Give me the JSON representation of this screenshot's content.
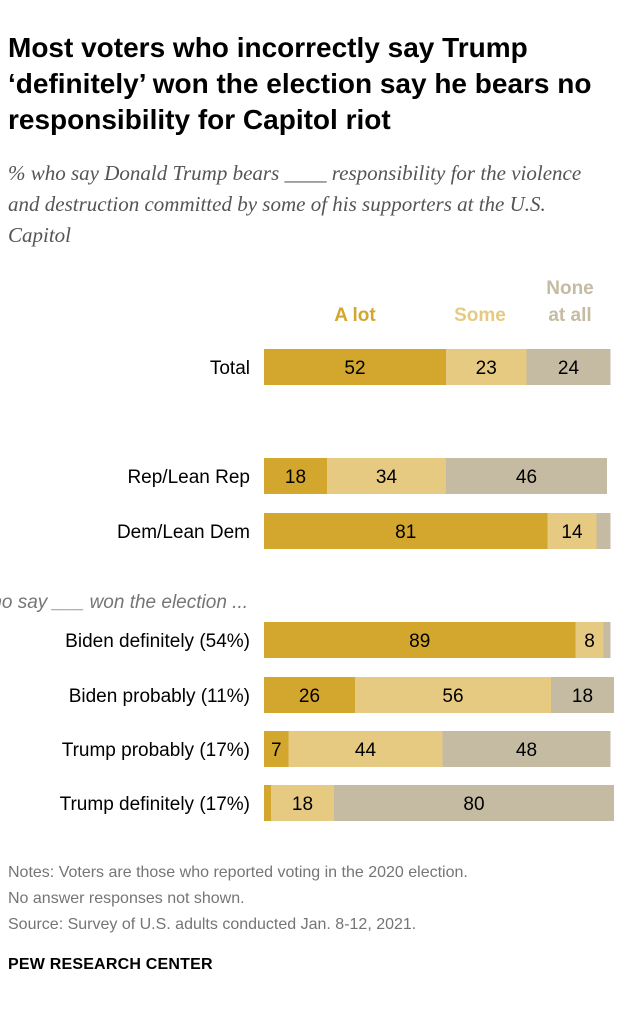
{
  "title": "Most voters who incorrectly say Trump ‘definitely’ won the election say he bears no responsibility for Capitol riot",
  "subtitle": "% who say Donald Trump bears ____ responsibility for the violence and destruction committed by some of his supporters at the U.S. Capitol",
  "notes": [
    "Notes: Voters are those who reported voting in the 2020 election.",
    "No answer responses not shown.",
    "Source: Survey of U.S. adults conducted Jan. 8-12, 2021."
  ],
  "brand": "PEW RESEARCH CENTER",
  "chart_data": {
    "type": "bar",
    "orientation": "horizontal",
    "stacked": true,
    "xlim": [
      0,
      100
    ],
    "legend_placement": "top",
    "series": [
      {
        "name": "A lot",
        "color": "#d3a62d",
        "label_color": "#d3a62d"
      },
      {
        "name": "Some",
        "color": "#e6ca82",
        "label_color": "#e6ca82"
      },
      {
        "name": "None at all",
        "color": "#c4bba2",
        "label_color": "#c4bba2"
      }
    ],
    "section_label": "Among voters who say ___ won the election ...",
    "rows": [
      {
        "category": "Total",
        "values": [
          52,
          23,
          24
        ],
        "labels": [
          "52",
          "23",
          "24"
        ]
      },
      {
        "category": "Rep/Lean Rep",
        "values": [
          18,
          34,
          46
        ],
        "labels": [
          "18",
          "34",
          "46"
        ]
      },
      {
        "category": "Dem/Lean Dem",
        "values": [
          81,
          14,
          4
        ],
        "labels": [
          "81",
          "14",
          ""
        ]
      },
      {
        "category": "Biden definitely (54%)",
        "values": [
          89,
          8,
          2
        ],
        "labels": [
          "89",
          "8",
          ""
        ]
      },
      {
        "category": "Biden probably (11%)",
        "values": [
          26,
          56,
          18
        ],
        "labels": [
          "26",
          "56",
          "18"
        ]
      },
      {
        "category": "Trump probably (17%)",
        "values": [
          7,
          44,
          48
        ],
        "labels": [
          "7",
          "44",
          "48"
        ]
      },
      {
        "category": "Trump definitely (17%)",
        "values": [
          2,
          18,
          80
        ],
        "labels": [
          "",
          "18",
          "80"
        ]
      }
    ]
  }
}
